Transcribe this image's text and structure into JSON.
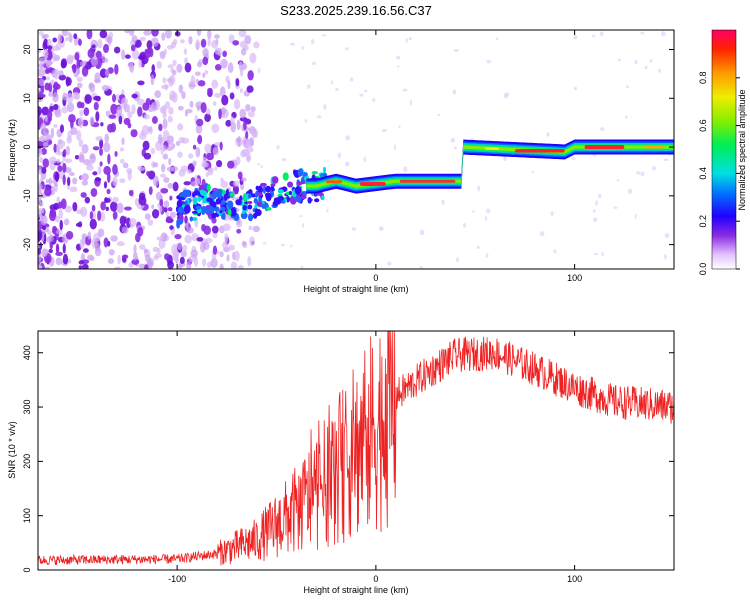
{
  "title": "S233.2025.239.16.56.C37",
  "chart_data": [
    {
      "type": "heatmap",
      "name": "spectrogram",
      "xlabel": "Height of straight line (km)",
      "ylabel": "Frequency (Hz)",
      "xlim": [
        -170,
        150
      ],
      "ylim": [
        -25,
        24
      ],
      "xticks": [
        -100,
        0,
        100
      ],
      "yticks": [
        20,
        10,
        0,
        -10,
        -20
      ],
      "colorbar": {
        "label": "Normalized spectral amplitude",
        "range": [
          0,
          1
        ],
        "ticks": [
          0.0,
          0.2,
          0.4,
          0.6,
          0.8
        ]
      },
      "ridge": [
        {
          "x": -100,
          "y": -13
        },
        {
          "x": -85,
          "y": -11
        },
        {
          "x": -65,
          "y": -12
        },
        {
          "x": -55,
          "y": -10
        },
        {
          "x": -40,
          "y": -8
        },
        {
          "x": -30,
          "y": -8
        },
        {
          "x": -20,
          "y": -7
        },
        {
          "x": -10,
          "y": -8
        },
        {
          "x": 0,
          "y": -7.5
        },
        {
          "x": 10,
          "y": -7
        },
        {
          "x": 43,
          "y": -7
        },
        {
          "x": 44,
          "y": 0
        },
        {
          "x": 95,
          "y": -1
        },
        {
          "x": 100,
          "y": 0
        },
        {
          "x": 150,
          "y": 0
        }
      ]
    },
    {
      "type": "line",
      "name": "snr",
      "xlabel": "Height of straight line (km)",
      "ylabel": "SNR (10 * v/v)",
      "xlim": [
        -170,
        150
      ],
      "ylim": [
        0,
        440
      ],
      "xticks": [
        -100,
        0,
        100
      ],
      "yticks": [
        0,
        100,
        200,
        300,
        400
      ],
      "color": "#ee2222",
      "envelope": [
        {
          "x": -170,
          "y": 18
        },
        {
          "x": -100,
          "y": 20
        },
        {
          "x": -80,
          "y": 30
        },
        {
          "x": -60,
          "y": 55
        },
        {
          "x": -40,
          "y": 110
        },
        {
          "x": -20,
          "y": 180
        },
        {
          "x": -10,
          "y": 220
        },
        {
          "x": 0,
          "y": 260
        },
        {
          "x": 10,
          "y": 320
        },
        {
          "x": 25,
          "y": 360
        },
        {
          "x": 40,
          "y": 395
        },
        {
          "x": 60,
          "y": 400
        },
        {
          "x": 80,
          "y": 370
        },
        {
          "x": 100,
          "y": 335
        },
        {
          "x": 120,
          "y": 310
        },
        {
          "x": 150,
          "y": 300
        }
      ]
    }
  ]
}
